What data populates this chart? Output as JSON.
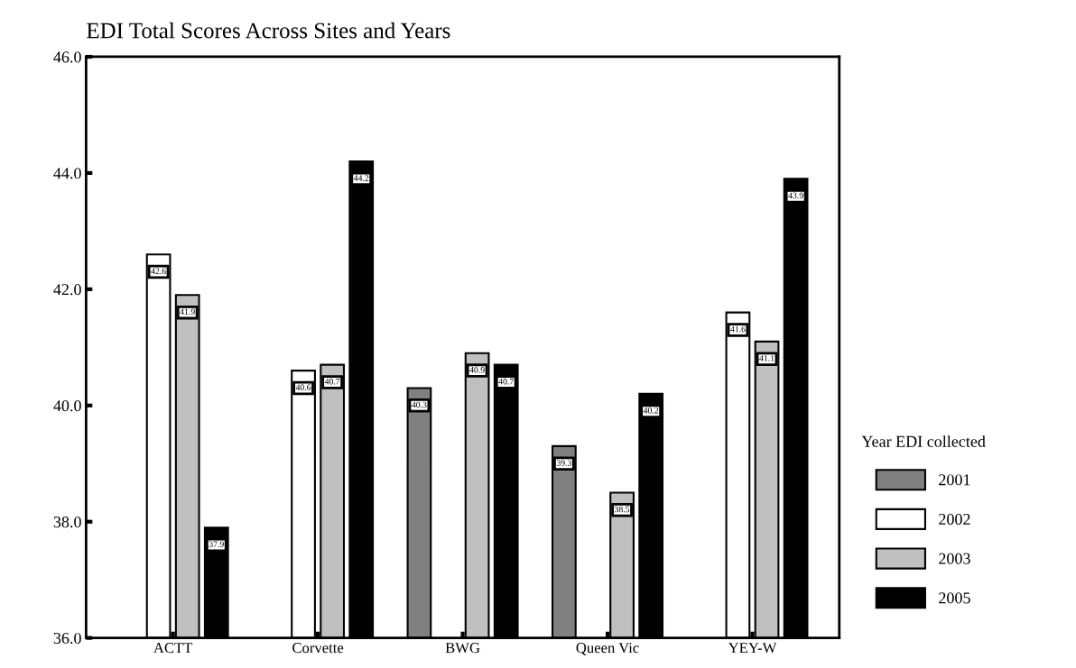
{
  "chart_data": {
    "type": "bar",
    "title": "EDI Total Scores Across Sites and Years",
    "categories": [
      "ACTT",
      "Corvette",
      "BWG",
      "Queen Vic",
      "YEY-W"
    ],
    "series": [
      {
        "name": "2001",
        "color": "#808080",
        "values": [
          null,
          null,
          40.3,
          39.3,
          null
        ]
      },
      {
        "name": "2002",
        "color": "#ffffff",
        "values": [
          42.6,
          40.6,
          null,
          null,
          41.6
        ]
      },
      {
        "name": "2003",
        "color": "#c0c0c0",
        "values": [
          41.9,
          40.7,
          40.9,
          38.5,
          41.1
        ]
      },
      {
        "name": "2005",
        "color": "#000000",
        "values": [
          37.9,
          44.2,
          40.7,
          40.2,
          43.9
        ]
      }
    ],
    "legend_title": "Year EDI collected",
    "legend": "right",
    "ylim": [
      36,
      46
    ],
    "yticks": [
      {
        "value": 36,
        "label": "36.0"
      },
      {
        "value": 38,
        "label": "38.0"
      },
      {
        "value": 40,
        "label": "40.0"
      },
      {
        "value": 42,
        "label": "42.0"
      },
      {
        "value": 44,
        "label": "44.0"
      },
      {
        "value": 46,
        "label": "46.0"
      }
    ],
    "data_labels": true,
    "grid": false
  }
}
